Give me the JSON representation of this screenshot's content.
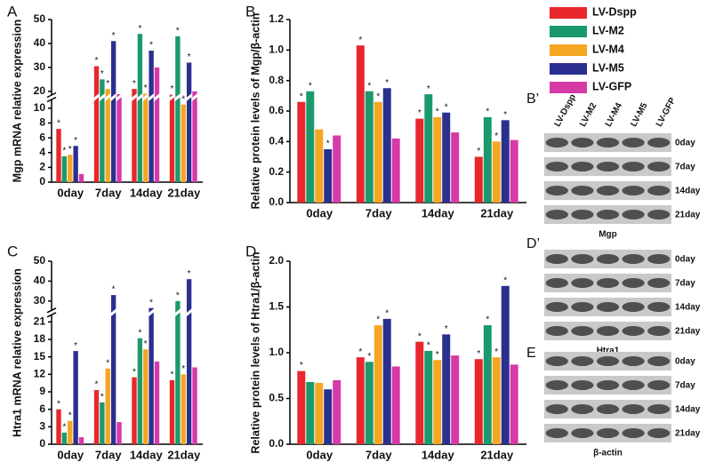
{
  "legend": [
    {
      "name": "LV-Dspp",
      "color": "#e8262b"
    },
    {
      "name": "LV-M2",
      "color": "#1a9a6c"
    },
    {
      "name": "LV-M4",
      "color": "#f5a623"
    },
    {
      "name": "LV-M5",
      "color": "#2b2f8f"
    },
    {
      "name": "LV-GFP",
      "color": "#d63aa6"
    }
  ],
  "chart_data": [
    {
      "type": "bar",
      "panel": "A",
      "ylabel": "Mgp mRNA relative expression",
      "categories": [
        "0day",
        "7day",
        "14day",
        "21day"
      ],
      "ylim": [
        0,
        50
      ],
      "y_break": [
        11,
        19
      ],
      "yticks": [
        0,
        2,
        4,
        6,
        8,
        10,
        20,
        30,
        40,
        50
      ],
      "marker": "*",
      "series": [
        {
          "values": [
            7.2,
            30.5,
            21,
            18
          ],
          "significant": [
            true,
            true,
            true,
            true
          ]
        },
        {
          "values": [
            3.5,
            25,
            44,
            43
          ],
          "significant": [
            true,
            true,
            true,
            true
          ]
        },
        {
          "values": [
            3.7,
            21,
            19,
            10.5
          ],
          "significant": [
            true,
            true,
            true,
            true
          ]
        },
        {
          "values": [
            4.9,
            41,
            37,
            32
          ],
          "significant": [
            true,
            true,
            true,
            true
          ]
        },
        {
          "values": [
            1.1,
            18.5,
            30,
            20
          ],
          "significant": [
            false,
            false,
            false,
            false
          ]
        }
      ]
    },
    {
      "type": "bar",
      "panel": "B",
      "ylabel": "Relative protein levels of Mgp/β-actin",
      "categories": [
        "0day",
        "7day",
        "14day",
        "21day"
      ],
      "ylim": [
        0,
        1.2
      ],
      "yticks": [
        {
          "value": 0,
          "label": "0.0"
        },
        0.2,
        0.4,
        0.6,
        0.8,
        {
          "value": 1,
          "label": "1.0"
        },
        1.2
      ],
      "marker": "*",
      "series": [
        {
          "values": [
            0.66,
            1.03,
            0.55,
            0.3
          ],
          "significant": [
            true,
            true,
            true,
            true
          ]
        },
        {
          "values": [
            0.73,
            0.73,
            0.71,
            0.56
          ],
          "significant": [
            true,
            true,
            true,
            true
          ]
        },
        {
          "values": [
            0.48,
            0.66,
            0.56,
            0.4
          ],
          "significant": [
            false,
            true,
            true,
            true
          ]
        },
        {
          "values": [
            0.35,
            0.75,
            0.59,
            0.54
          ],
          "significant": [
            true,
            true,
            true,
            true
          ]
        },
        {
          "values": [
            0.44,
            0.42,
            0.46,
            0.41
          ],
          "significant": [
            false,
            false,
            false,
            false
          ]
        }
      ]
    },
    {
      "type": "bar",
      "panel": "C",
      "ylabel": "Htra1 mRNA relative expression",
      "categories": [
        "0day",
        "7day",
        "14day",
        "21day"
      ],
      "ylim": [
        0,
        50
      ],
      "y_break": [
        22,
        26
      ],
      "yticks": [
        0,
        3,
        6,
        9,
        12,
        15,
        18,
        21,
        30,
        40,
        50
      ],
      "marker": "*",
      "series": [
        {
          "values": [
            6,
            9.3,
            11.5,
            11
          ],
          "significant": [
            true,
            true,
            true,
            true
          ]
        },
        {
          "values": [
            2,
            7.2,
            18.2,
            30
          ],
          "significant": [
            true,
            true,
            true,
            true
          ]
        },
        {
          "values": [
            4,
            13,
            16.3,
            12
          ],
          "significant": [
            true,
            true,
            true,
            true
          ]
        },
        {
          "values": [
            16,
            33,
            26.5,
            41
          ],
          "significant": [
            true,
            true,
            true,
            true
          ]
        },
        {
          "values": [
            1.2,
            3.8,
            14.2,
            13.2
          ],
          "significant": [
            false,
            false,
            false,
            false
          ]
        }
      ]
    },
    {
      "type": "bar",
      "panel": "D",
      "ylabel": "Relative protein levels of Htra1/β-actin",
      "categories": [
        "0day",
        "7day",
        "14day",
        "21day"
      ],
      "ylim": [
        0,
        2
      ],
      "yticks": [
        {
          "value": 0,
          "label": "0.0"
        },
        0.5,
        {
          "value": 1,
          "label": "1.0"
        },
        1.5,
        {
          "value": 2,
          "label": "2.0"
        }
      ],
      "marker": "*",
      "series": [
        {
          "values": [
            0.8,
            0.95,
            1.12,
            0.93
          ],
          "significant": [
            true,
            true,
            true,
            true
          ]
        },
        {
          "values": [
            0.68,
            0.9,
            1.02,
            1.3
          ],
          "significant": [
            false,
            true,
            true,
            true
          ]
        },
        {
          "values": [
            0.67,
            1.3,
            0.92,
            0.95
          ],
          "significant": [
            false,
            true,
            true,
            true
          ]
        },
        {
          "values": [
            0.6,
            1.37,
            1.2,
            1.73
          ],
          "significant": [
            false,
            true,
            true,
            true
          ]
        },
        {
          "values": [
            0.7,
            0.85,
            0.97,
            0.87
          ],
          "significant": [
            false,
            false,
            false,
            false
          ]
        }
      ]
    }
  ],
  "blots": [
    {
      "letter": "B’",
      "rows": [
        "0day",
        "7day",
        "14day",
        "21day"
      ],
      "protein": "Mgp"
    },
    {
      "letter": "D’",
      "rows": [
        "0day",
        "7day",
        "14day",
        "21day"
      ],
      "protein": "Htra1"
    },
    {
      "letter": "E",
      "rows": [
        "0day",
        "7day",
        "14day",
        "21day"
      ],
      "protein": "β-actin"
    }
  ]
}
